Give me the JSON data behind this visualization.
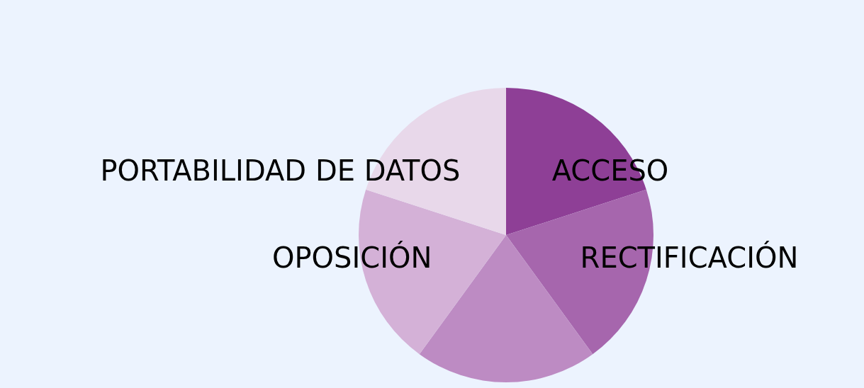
{
  "chart_data": {
    "type": "pie",
    "categories": [
      "ACCESO",
      "RECTIFICACIÓN",
      null,
      "OPOSICIÓN",
      "PORTABILIDAD DE DATOS"
    ],
    "values": [
      20,
      20,
      20,
      20,
      20
    ],
    "colors": [
      "#8e3f96",
      "#a666ad",
      "#bd8bc3",
      "#d4b1d7",
      "#e8d8ea"
    ]
  }
}
